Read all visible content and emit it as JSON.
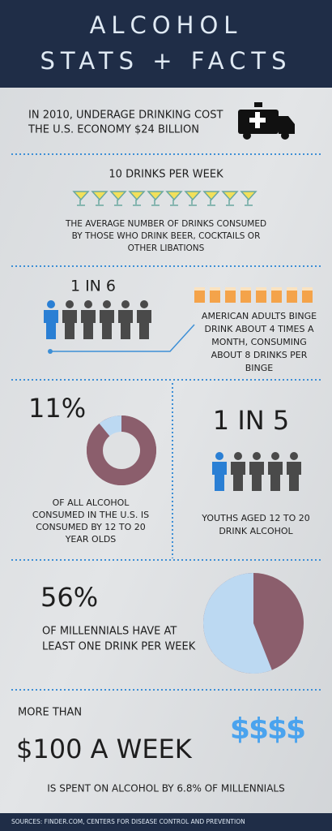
{
  "header": {
    "title_line1": "ALCOHOL",
    "title_line2": "STATS + FACTS"
  },
  "cost": {
    "line1": "IN 2010, UNDERAGE DRINKING COST",
    "line2": "THE U.S. ECONOMY $24 BILLION"
  },
  "drinks": {
    "heading": "10 DRINKS PER WEEK",
    "lines": [
      "THE AVERAGE NUMBER OF DRINKS CONSUMED",
      "BY THOSE WHO DRINK BEER, COCKTAILS OR",
      "OTHER LIBATIONS"
    ]
  },
  "binge": {
    "heading": "1 IN 6",
    "lines": [
      "AMERICAN ADULTS BINGE",
      "DRINK ABOUT 4 TIMES A",
      "MONTH, CONSUMING",
      "ABOUT 8 DRINKS PER",
      "BINGE"
    ]
  },
  "share": {
    "value": 11,
    "label": "11%",
    "lines": [
      "OF ALL ALCOHOL",
      "CONSUMED IN THE U.S. IS",
      "CONSUMED BY 12 TO 20",
      "YEAR OLDS"
    ]
  },
  "youths": {
    "heading": "1 IN 5",
    "lines": [
      "YOUTHS AGED 12 TO 20",
      "DRINK ALCOHOL"
    ]
  },
  "millennials": {
    "value": 56,
    "label": "56%",
    "lines": [
      "OF MILLENNIALS HAVE AT",
      "LEAST ONE DRINK PER WEEK"
    ]
  },
  "spend": {
    "prefix": "MORE THAN",
    "amount": "$100 A WEEK",
    "dollars": "$$$$",
    "line": "IS SPENT ON ALCOHOL BY 6.8% OF MILLENNIALS"
  },
  "footer": {
    "sources": "SOURCES: FINDER.COM, CENTERS FOR DISEASE CONTROL AND PREVENTION"
  }
}
